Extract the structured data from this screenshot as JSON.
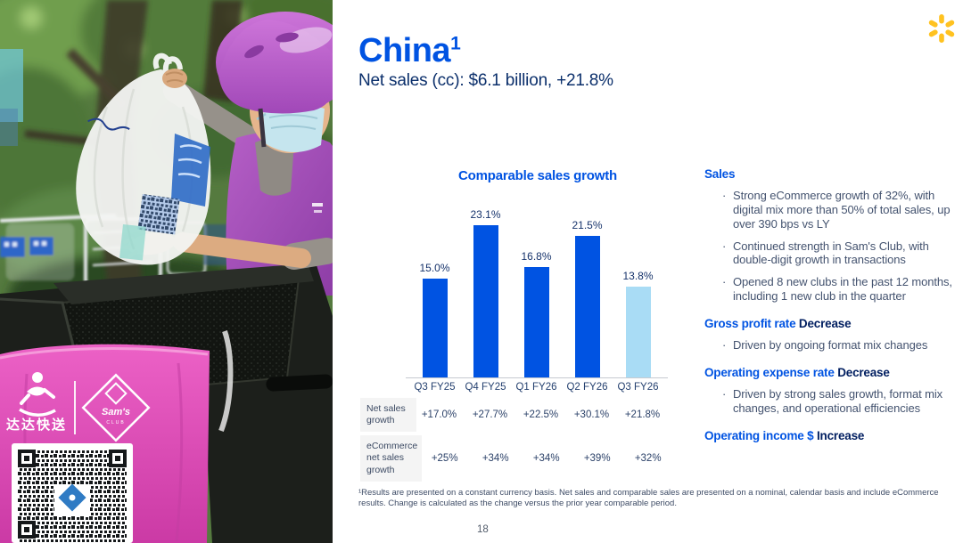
{
  "slide": {
    "title": "China",
    "title_superscript": "1",
    "subtitle": "Net sales (cc): $6.1 billion, +21.8%",
    "page_number": "18",
    "footnote": "¹Results are presented on a constant currency basis. Net sales and comparable sales are presented on a nominal, calendar basis and include eCommerce results. Change is calculated as the change versus the prior year comparable period."
  },
  "brand": {
    "spark_color": "#ffc220",
    "accent_blue": "#0053e2",
    "navy": "#001e60",
    "light_blue_bar": "#a9dcf5"
  },
  "chart_data": {
    "type": "bar",
    "title": "Comparable sales growth",
    "categories": [
      "Q3 FY25",
      "Q4 FY25",
      "Q1 FY26",
      "Q2 FY26",
      "Q3 FY26"
    ],
    "values": [
      15.0,
      23.1,
      16.8,
      21.5,
      13.8
    ],
    "value_labels": [
      "15.0%",
      "23.1%",
      "16.8%",
      "21.5%",
      "13.8%"
    ],
    "bar_colors": [
      "#0053e2",
      "#0053e2",
      "#0053e2",
      "#0053e2",
      "#a9dcf5"
    ],
    "xlabel": "",
    "ylabel": "",
    "ylim": [
      0,
      25
    ],
    "grid": false,
    "legend": false
  },
  "table": {
    "rows": [
      {
        "label": "Net sales growth",
        "values": [
          "+17.0%",
          "+27.7%",
          "+22.5%",
          "+30.1%",
          "+21.8%"
        ]
      },
      {
        "label": "eCommerce net sales growth",
        "values": [
          "+25%",
          "+34%",
          "+34%",
          "+39%",
          "+32%"
        ]
      }
    ]
  },
  "highlights": {
    "sections": [
      {
        "heading": "Sales",
        "heading_suffix": "",
        "bullets": [
          "Strong eCommerce growth of 32%, with digital mix more than 50% of total sales, up over 390 bps vs LY",
          "Continued strength in Sam's Club, with double-digit growth in transactions",
          "Opened 8 new clubs in the past 12 months, including 1 new club in the quarter"
        ]
      },
      {
        "heading": "Gross profit rate",
        "heading_suffix": "Decrease",
        "bullets": [
          "Driven by ongoing format mix changes"
        ]
      },
      {
        "heading": "Operating expense rate",
        "heading_suffix": "Decrease",
        "bullets": [
          "Driven by strong sales growth, format mix changes, and operational efficiencies"
        ]
      },
      {
        "heading": "Operating income $",
        "heading_suffix": "Increase",
        "bullets": []
      }
    ]
  },
  "photo": {
    "dada_logo_text": "达达快送",
    "sams_logo_line1": "Sam's",
    "sams_logo_line2": "CLUB"
  }
}
